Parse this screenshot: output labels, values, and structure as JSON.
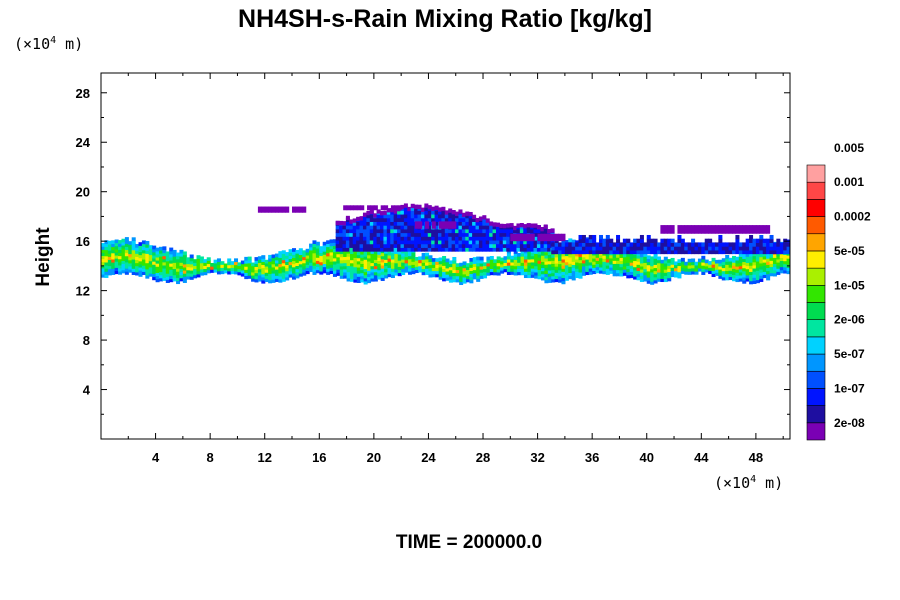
{
  "chart_data": {
    "type": "heatmap",
    "title": "NH4SH-s-Rain Mixing Ratio [kg/kg]",
    "ylabel": "Height",
    "x_unit": {
      "prefix": "(×10",
      "exp": "4",
      "suffix": " m)"
    },
    "y_unit": {
      "prefix": "(×10",
      "exp": "4",
      "suffix": " m)"
    },
    "xlim": [
      0,
      50.5
    ],
    "ylim": [
      0,
      29.6
    ],
    "x_ticks": [
      "4",
      "8",
      "12",
      "16",
      "20",
      "24",
      "28",
      "32",
      "36",
      "40",
      "44",
      "48"
    ],
    "y_ticks": [
      "4",
      "8",
      "12",
      "16",
      "20",
      "24",
      "28"
    ],
    "time_label": "TIME = 200000.0",
    "colorbar": {
      "colors": [
        "#7a00b4",
        "#1e0ea0",
        "#0014ff",
        "#0050ff",
        "#0096ff",
        "#00d2ff",
        "#00e6a0",
        "#00dc50",
        "#32e600",
        "#aaf000",
        "#ffee00",
        "#ffa500",
        "#ff5a00",
        "#ff0000",
        "#ff4646",
        "#ffa0a0"
      ],
      "labels": [
        "2e-08",
        "1e-07",
        "5e-07",
        "2e-06",
        "1e-05",
        "5e-05",
        "0.0002",
        "0.001",
        "0.005"
      ]
    },
    "field_description_layers": [
      {
        "x0": 0,
        "x1": 50.5,
        "base": 13.0,
        "top": 15.6,
        "level": 3
      },
      {
        "x0": 17.5,
        "x1": 32.5,
        "base": 14.5,
        "top": 18.8,
        "level": 1
      },
      {
        "x0": 11.5,
        "x1": 15.0,
        "base": 18.2,
        "top": 18.9,
        "level": 0
      }
    ]
  }
}
